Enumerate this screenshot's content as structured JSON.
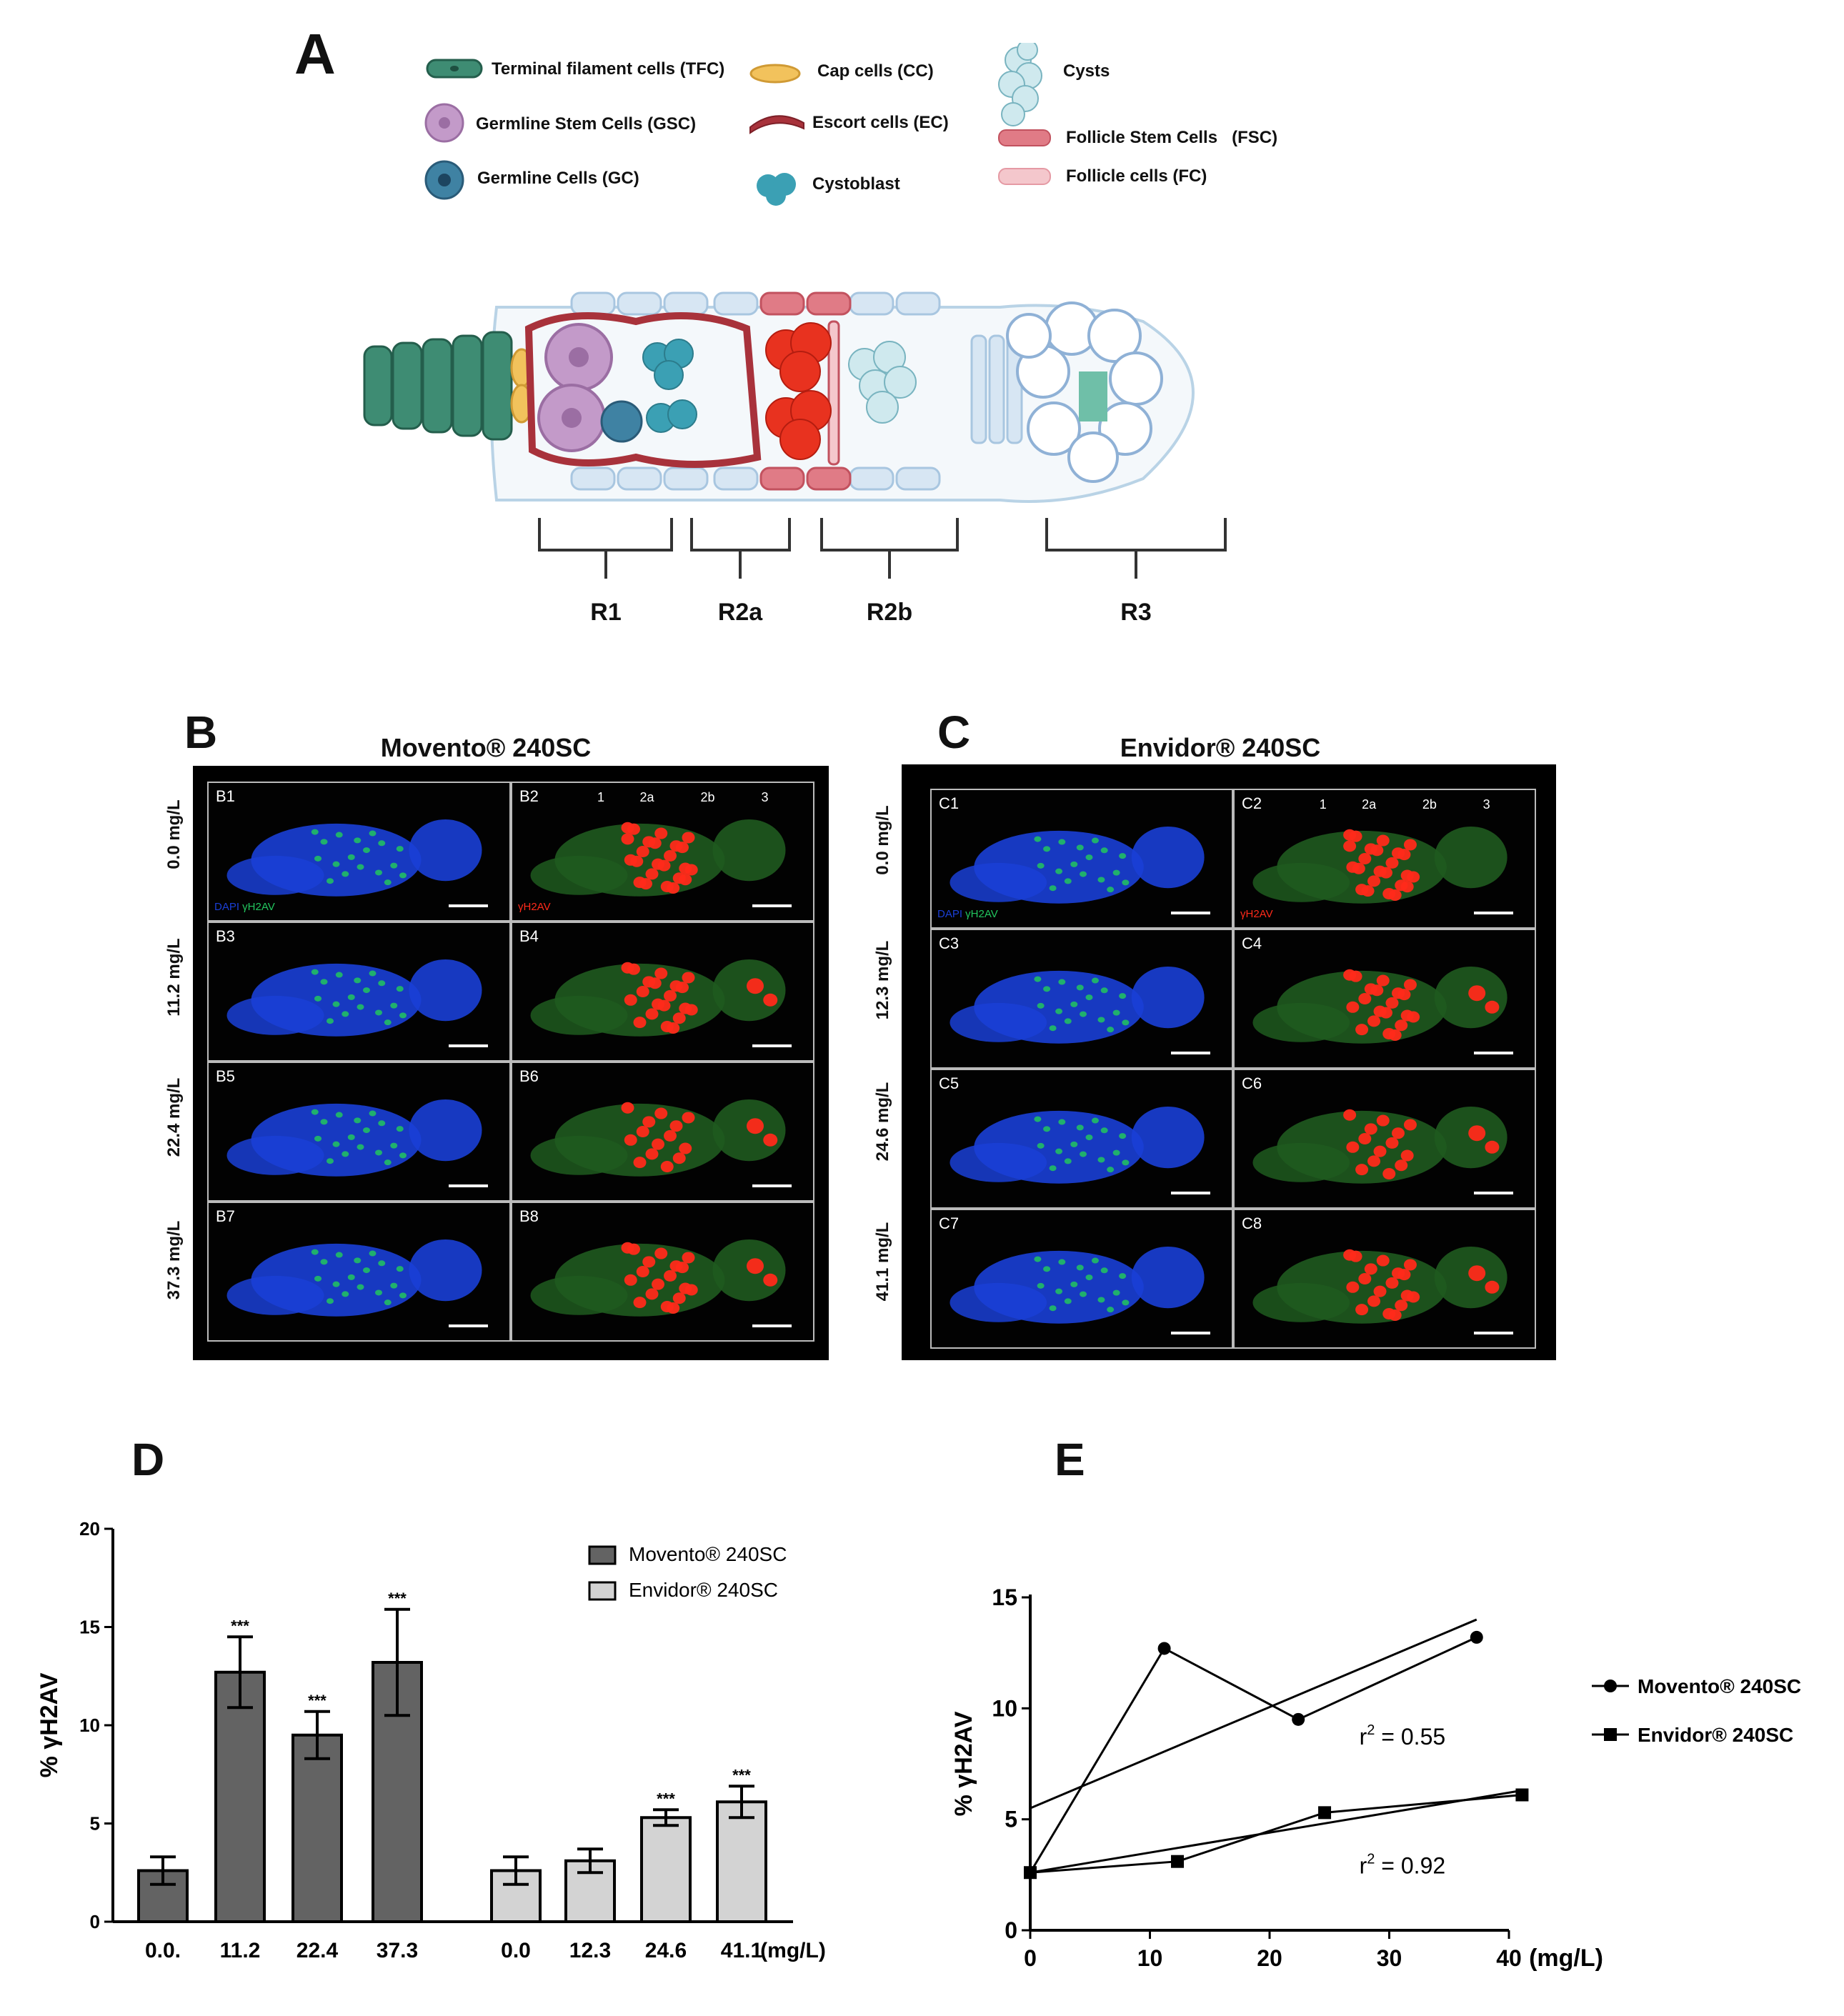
{
  "panelA": {
    "letter": "A",
    "legend": [
      {
        "id": "tfc",
        "label": "Terminal filament cells (TFC)"
      },
      {
        "id": "gsc",
        "label": "Germline Stem Cells (GSC)"
      },
      {
        "id": "gc",
        "label": "Germline Cells (GC)"
      },
      {
        "id": "cc",
        "label": "Cap cells (CC)"
      },
      {
        "id": "ec",
        "label": "Escort cells (EC)"
      },
      {
        "id": "cb",
        "label": "Cystoblast"
      },
      {
        "id": "cysts",
        "label": "Cysts"
      },
      {
        "id": "fsc",
        "label": "Follicle Stem Cells   (FSC)"
      },
      {
        "id": "fc",
        "label": "Follicle cells (FC)"
      }
    ],
    "regions": [
      "R1",
      "R2a",
      "R2b",
      "R3"
    ]
  },
  "panelB": {
    "letter": "B",
    "title": "Movento® 240SC",
    "concentrations": [
      "0.0 mg/L",
      "11.2 mg/L",
      "22.4 mg/L",
      "37.3 mg/L"
    ],
    "labels": [
      [
        "B1",
        "B2"
      ],
      [
        "B3",
        "B4"
      ],
      [
        "B5",
        "B6"
      ],
      [
        "B7",
        "B8"
      ]
    ],
    "region_marks": [
      "1",
      "2a",
      "2b",
      "3"
    ],
    "channels": {
      "dapi": "DAPI",
      "green": "γH2AV",
      "red": "γH2AV"
    }
  },
  "panelC": {
    "letter": "C",
    "title": "Envidor® 240SC",
    "concentrations": [
      "0.0 mg/L",
      "12.3 mg/L",
      "24.6 mg/L",
      "41.1 mg/L"
    ],
    "labels": [
      [
        "C1",
        "C2"
      ],
      [
        "C3",
        "C4"
      ],
      [
        "C5",
        "C6"
      ],
      [
        "C7",
        "C8"
      ]
    ],
    "region_marks": [
      "1",
      "2a",
      "2b",
      "3"
    ],
    "channels": {
      "dapi": "DAPI",
      "green": "γH2AV",
      "red": "γH2AV"
    }
  },
  "colors": {
    "movento_bar": "#636363",
    "envidor_bar": "#d3d3d3",
    "dapi": "#1a3fd6",
    "green": "#22c55e",
    "red": "#ff2a1a"
  },
  "chart_data": [
    {
      "panel": "D",
      "type": "bar",
      "ylabel": "% γH2AV",
      "xlabel": "(mg/L)",
      "ylim": [
        0,
        20
      ],
      "yticks": [
        0,
        5,
        10,
        15,
        20
      ],
      "series": [
        {
          "name": "Movento® 240SC",
          "categories": [
            "0.0.",
            "11.2",
            "22.4",
            "37.3"
          ],
          "values": [
            2.6,
            12.7,
            9.5,
            13.2
          ],
          "errors": [
            0.7,
            1.8,
            1.2,
            2.7
          ],
          "sig": [
            "",
            "***",
            "***",
            "***"
          ]
        },
        {
          "name": "Envidor® 240SC",
          "categories": [
            "0.0",
            "12.3",
            "24.6",
            "41.1"
          ],
          "values": [
            2.6,
            3.1,
            5.3,
            6.1
          ],
          "errors": [
            0.7,
            0.6,
            0.4,
            0.8
          ],
          "sig": [
            "",
            "",
            "***",
            "***"
          ]
        }
      ]
    },
    {
      "panel": "E",
      "type": "line",
      "ylabel": "% γH2AV",
      "xlabel": "(mg/L)",
      "xlim": [
        0,
        40
      ],
      "ylim": [
        0,
        15
      ],
      "xticks": [
        0,
        10,
        20,
        30,
        40
      ],
      "yticks": [
        0,
        5,
        10,
        15
      ],
      "series": [
        {
          "name": "Movento® 240SC",
          "marker": "circle",
          "x": [
            0,
            11.2,
            22.4,
            37.3
          ],
          "y": [
            2.6,
            12.7,
            9.5,
            13.2
          ],
          "fit": [
            [
              0,
              5.5
            ],
            [
              37.3,
              14.0
            ]
          ],
          "r2": "= 0.55"
        },
        {
          "name": "Envidor® 240SC",
          "marker": "square",
          "x": [
            0,
            12.3,
            24.6,
            41.1
          ],
          "y": [
            2.6,
            3.1,
            5.3,
            6.1
          ],
          "fit": [
            [
              0,
              2.6
            ],
            [
              41.1,
              6.3
            ]
          ],
          "r2": "= 0.92"
        }
      ]
    }
  ],
  "panelD": {
    "letter": "D"
  },
  "panelE": {
    "letter": "E"
  }
}
